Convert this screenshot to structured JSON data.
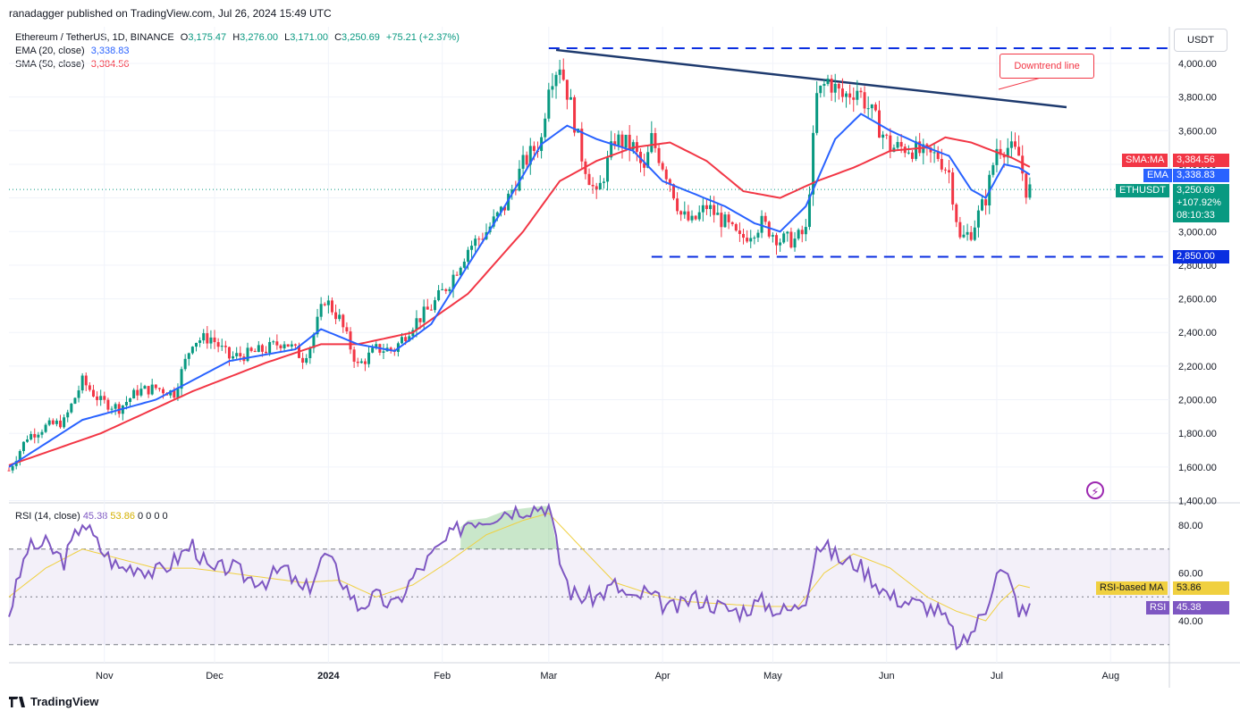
{
  "header": {
    "published": "ranadagger published on TradingView.com, Jul 26, 2024 15:49 UTC"
  },
  "legend": {
    "symbol": "Ethereum / TetherUS, 1D, BINANCE",
    "o_label": "O",
    "o": "3,175.47",
    "h_label": "H",
    "h": "3,276.00",
    "l_label": "L",
    "l": "3,171.00",
    "c_label": "C",
    "c": "3,250.69",
    "change": "+75.21 (+2.37%)",
    "ema_label": "EMA (20, close)",
    "ema_value": "3,338.83",
    "sma_label": "SMA (50, close)",
    "sma_value": "3,384.56"
  },
  "rsi_legend": {
    "label": "RSI (14, close)",
    "rsi": "45.38",
    "ma": "53.86",
    "zeros": "0 0 0 0"
  },
  "axis": {
    "currency": "USDT"
  },
  "colors": {
    "up": "#089981",
    "down": "#f23645",
    "ema": "#2962ff",
    "sma": "#f23645",
    "trend": "#1e3a6e",
    "rsi": "#7e57c2",
    "rsi_ma": "#f0d040",
    "level": "#0a2ee0"
  },
  "labels": {
    "downtrend": "Downtrend line",
    "sma_tag": "SMA:MA",
    "sma_tag_val": "3,384.56",
    "ema_tag": "EMA",
    "ema_tag_val": "3,338.83",
    "price_tag": "ETHUSDT",
    "price_tag_val": "3,250.69",
    "price_change": "+107.92%",
    "countdown": "08:10:33",
    "support_tag": "2,850.00",
    "rsi_ma_tag": "RSI-based MA",
    "rsi_ma_val": "53.86",
    "rsi_tag": "RSI",
    "rsi_val": "45.38"
  },
  "footer": {
    "brand": "TradingView"
  },
  "chart_data": [
    {
      "type": "candlestick",
      "title": "Ethereum / TetherUS, 1D, BINANCE",
      "y_ticks": [
        "4,000.00",
        "3,800.00",
        "3,600.00",
        "3,400.00",
        "3,200.00",
        "3,000.00",
        "2,800.00",
        "2,600.00",
        "2,400.00",
        "2,200.00",
        "2,000.00",
        "1,800.00",
        "1,600.00",
        "1,400.00"
      ],
      "y_values": [
        4000,
        3800,
        3600,
        3400,
        3200,
        3000,
        2800,
        2600,
        2400,
        2200,
        2000,
        1800,
        1600,
        1400
      ],
      "x_ticks": [
        "Nov",
        "Dec",
        "2024",
        "Feb",
        "Mar",
        "Apr",
        "May",
        "Jun",
        "Jul",
        "Aug"
      ],
      "x_tick_days": [
        26,
        56,
        87,
        118,
        147,
        178,
        208,
        239,
        269,
        300
      ],
      "ylim": [
        1400,
        4100
      ],
      "resistance": 4090,
      "support": 2850,
      "downtrend_line": [
        [
          149,
          4080
        ],
        [
          288,
          3740
        ]
      ],
      "close_path": [
        [
          0,
          1580
        ],
        [
          5,
          1780
        ],
        [
          10,
          1840
        ],
        [
          15,
          1870
        ],
        [
          20,
          2110
        ],
        [
          25,
          1990
        ],
        [
          30,
          1950
        ],
        [
          35,
          2050
        ],
        [
          40,
          2070
        ],
        [
          45,
          2040
        ],
        [
          50,
          2350
        ],
        [
          55,
          2370
        ],
        [
          60,
          2250
        ],
        [
          65,
          2270
        ],
        [
          70,
          2300
        ],
        [
          75,
          2350
        ],
        [
          80,
          2250
        ],
        [
          82,
          2320
        ],
        [
          86,
          2600
        ],
        [
          90,
          2480
        ],
        [
          95,
          2200
        ],
        [
          100,
          2300
        ],
        [
          105,
          2300
        ],
        [
          110,
          2450
        ],
        [
          115,
          2550
        ],
        [
          120,
          2700
        ],
        [
          125,
          2900
        ],
        [
          130,
          3000
        ],
        [
          135,
          3150
        ],
        [
          140,
          3400
        ],
        [
          145,
          3550
        ],
        [
          147,
          3900
        ],
        [
          150,
          4000
        ],
        [
          153,
          3750
        ],
        [
          156,
          3450
        ],
        [
          160,
          3200
        ],
        [
          165,
          3550
        ],
        [
          170,
          3500
        ],
        [
          173,
          3350
        ],
        [
          175,
          3550
        ],
        [
          180,
          3300
        ],
        [
          183,
          3100
        ],
        [
          186,
          3050
        ],
        [
          190,
          3150
        ],
        [
          195,
          3050
        ],
        [
          199,
          2950
        ],
        [
          205,
          3050
        ],
        [
          210,
          2950
        ],
        [
          214,
          2950
        ],
        [
          217,
          3000
        ],
        [
          220,
          3800
        ],
        [
          223,
          3900
        ],
        [
          227,
          3800
        ],
        [
          231,
          3850
        ],
        [
          235,
          3700
        ],
        [
          240,
          3500
        ],
        [
          245,
          3500
        ],
        [
          250,
          3450
        ],
        [
          253,
          3450
        ],
        [
          256,
          3350
        ],
        [
          259,
          2950
        ],
        [
          262,
          3000
        ],
        [
          266,
          3200
        ],
        [
          269,
          3500
        ],
        [
          272,
          3500
        ],
        [
          275,
          3450
        ],
        [
          277,
          3250
        ],
        [
          278,
          3250
        ]
      ],
      "ema20": [
        [
          0,
          1600
        ],
        [
          20,
          1880
        ],
        [
          40,
          2000
        ],
        [
          60,
          2230
        ],
        [
          78,
          2300
        ],
        [
          85,
          2420
        ],
        [
          95,
          2330
        ],
        [
          105,
          2290
        ],
        [
          115,
          2450
        ],
        [
          125,
          2800
        ],
        [
          135,
          3150
        ],
        [
          145,
          3520
        ],
        [
          152,
          3630
        ],
        [
          160,
          3550
        ],
        [
          170,
          3480
        ],
        [
          178,
          3300
        ],
        [
          186,
          3230
        ],
        [
          195,
          3150
        ],
        [
          203,
          3050
        ],
        [
          210,
          3000
        ],
        [
          217,
          3150
        ],
        [
          225,
          3550
        ],
        [
          232,
          3700
        ],
        [
          240,
          3600
        ],
        [
          250,
          3500
        ],
        [
          256,
          3450
        ],
        [
          262,
          3250
        ],
        [
          266,
          3200
        ],
        [
          271,
          3400
        ],
        [
          275,
          3380
        ],
        [
          278,
          3338.83
        ]
      ],
      "sma50": [
        [
          0,
          1610
        ],
        [
          25,
          1800
        ],
        [
          50,
          2050
        ],
        [
          70,
          2220
        ],
        [
          85,
          2330
        ],
        [
          95,
          2330
        ],
        [
          110,
          2400
        ],
        [
          125,
          2630
        ],
        [
          140,
          3000
        ],
        [
          150,
          3300
        ],
        [
          160,
          3420
        ],
        [
          170,
          3500
        ],
        [
          180,
          3530
        ],
        [
          190,
          3420
        ],
        [
          200,
          3240
        ],
        [
          210,
          3200
        ],
        [
          220,
          3300
        ],
        [
          230,
          3380
        ],
        [
          240,
          3480
        ],
        [
          250,
          3500
        ],
        [
          255,
          3560
        ],
        [
          262,
          3530
        ],
        [
          268,
          3480
        ],
        [
          273,
          3440
        ],
        [
          278,
          3384.56
        ]
      ]
    },
    {
      "type": "line",
      "title": "RSI (14, close)",
      "y_ticks": [
        "80.00",
        "60.00",
        "40.00"
      ],
      "y_values": [
        80,
        60,
        40
      ],
      "ylim": [
        20,
        90
      ],
      "bands": [
        30,
        50,
        70
      ],
      "rsi": [
        [
          0,
          43
        ],
        [
          5,
          70
        ],
        [
          10,
          72
        ],
        [
          15,
          65
        ],
        [
          20,
          82
        ],
        [
          25,
          70
        ],
        [
          30,
          62
        ],
        [
          35,
          63
        ],
        [
          40,
          60
        ],
        [
          45,
          65
        ],
        [
          50,
          72
        ],
        [
          55,
          60
        ],
        [
          60,
          63
        ],
        [
          65,
          58
        ],
        [
          70,
          57
        ],
        [
          75,
          62
        ],
        [
          80,
          52
        ],
        [
          82,
          55
        ],
        [
          86,
          68
        ],
        [
          90,
          59
        ],
        [
          95,
          46
        ],
        [
          100,
          50
        ],
        [
          105,
          46
        ],
        [
          110,
          58
        ],
        [
          115,
          67
        ],
        [
          120,
          75
        ],
        [
          125,
          82
        ],
        [
          130,
          83
        ],
        [
          135,
          86
        ],
        [
          140,
          87
        ],
        [
          145,
          88
        ],
        [
          147,
          88
        ],
        [
          150,
          65
        ],
        [
          153,
          52
        ],
        [
          156,
          50
        ],
        [
          160,
          50
        ],
        [
          165,
          55
        ],
        [
          170,
          48
        ],
        [
          173,
          52
        ],
        [
          175,
          50
        ],
        [
          180,
          45
        ],
        [
          183,
          46
        ],
        [
          186,
          50
        ],
        [
          190,
          48
        ],
        [
          195,
          45
        ],
        [
          199,
          44
        ],
        [
          205,
          48
        ],
        [
          210,
          44
        ],
        [
          214,
          45
        ],
        [
          217,
          50
        ],
        [
          220,
          72
        ],
        [
          223,
          70
        ],
        [
          227,
          65
        ],
        [
          231,
          64
        ],
        [
          235,
          58
        ],
        [
          240,
          50
        ],
        [
          245,
          48
        ],
        [
          250,
          46
        ],
        [
          253,
          44
        ],
        [
          256,
          38
        ],
        [
          259,
          28
        ],
        [
          262,
          35
        ],
        [
          266,
          45
        ],
        [
          269,
          62
        ],
        [
          272,
          58
        ],
        [
          275,
          45
        ],
        [
          277,
          43
        ],
        [
          278,
          45.38
        ]
      ],
      "rsi_ma": [
        [
          0,
          50
        ],
        [
          10,
          62
        ],
        [
          20,
          70
        ],
        [
          30,
          66
        ],
        [
          40,
          62
        ],
        [
          50,
          62
        ],
        [
          60,
          60
        ],
        [
          70,
          58
        ],
        [
          80,
          56
        ],
        [
          90,
          57
        ],
        [
          100,
          50
        ],
        [
          110,
          55
        ],
        [
          120,
          65
        ],
        [
          130,
          76
        ],
        [
          140,
          82
        ],
        [
          147,
          85
        ],
        [
          155,
          72
        ],
        [
          165,
          56
        ],
        [
          175,
          51
        ],
        [
          185,
          48
        ],
        [
          195,
          47
        ],
        [
          205,
          46
        ],
        [
          215,
          46
        ],
        [
          222,
          60
        ],
        [
          230,
          68
        ],
        [
          240,
          62
        ],
        [
          250,
          50
        ],
        [
          258,
          44
        ],
        [
          266,
          40
        ],
        [
          270,
          48
        ],
        [
          275,
          55
        ],
        [
          278,
          53.86
        ]
      ]
    }
  ]
}
